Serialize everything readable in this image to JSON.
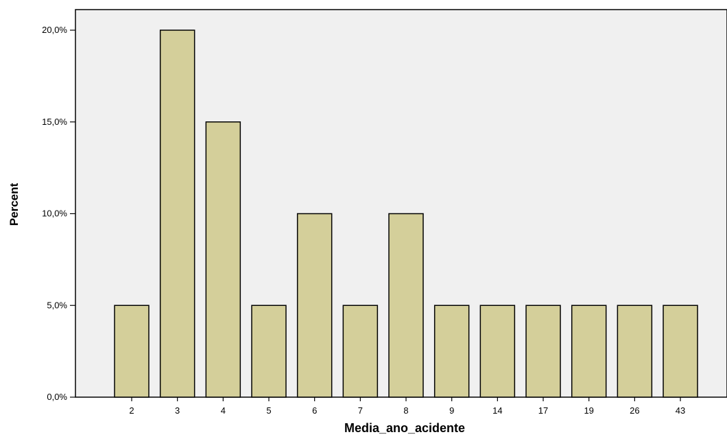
{
  "chart_data": {
    "type": "bar",
    "title": "",
    "xlabel": "Media_ano_acidente",
    "ylabel": "Percent",
    "categories": [
      "2",
      "3",
      "4",
      "5",
      "6",
      "7",
      "8",
      "9",
      "14",
      "17",
      "19",
      "26",
      "43"
    ],
    "values": [
      5,
      20,
      15,
      5,
      10,
      5,
      10,
      5,
      5,
      5,
      5,
      5,
      5
    ],
    "y_ticks": [
      {
        "value": 0,
        "label": "0,0%"
      },
      {
        "value": 5,
        "label": "5,0%"
      },
      {
        "value": 10,
        "label": "10,0%"
      },
      {
        "value": 15,
        "label": "15,0%"
      },
      {
        "value": 20,
        "label": "20,0%"
      }
    ],
    "ylim": [
      0,
      20
    ],
    "grid": false,
    "legend": "none",
    "colors": {
      "bar_fill": "#d4cf9a",
      "bar_stroke": "#000000",
      "plot_background": "#f0f0f0",
      "axis": "#000000"
    }
  }
}
